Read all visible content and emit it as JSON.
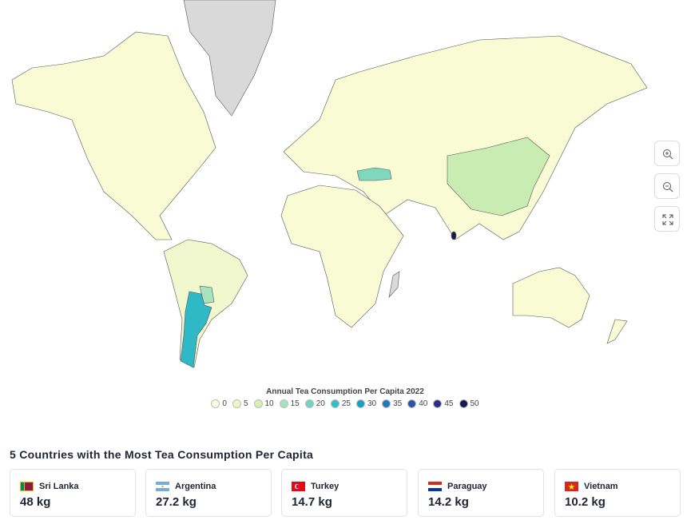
{
  "map": {
    "legend": {
      "title": "Annual Tea Consumption Per Capita 2022",
      "stops": [
        {
          "value": 0,
          "color": "#fcfde0"
        },
        {
          "value": 5,
          "color": "#eff7c2"
        },
        {
          "value": 10,
          "color": "#d3efb3"
        },
        {
          "value": 15,
          "color": "#a6e2bd"
        },
        {
          "value": 20,
          "color": "#72d3c0"
        },
        {
          "value": 25,
          "color": "#2fc0c8"
        },
        {
          "value": 30,
          "color": "#14a2c3"
        },
        {
          "value": 35,
          "color": "#1a7cb8"
        },
        {
          "value": 40,
          "color": "#2a54a6"
        },
        {
          "value": 45,
          "color": "#2b2e8a"
        },
        {
          "value": 50,
          "color": "#141b50"
        }
      ]
    }
  },
  "top": {
    "title": "5 Countries with the Most Tea Consumption Per Capita",
    "cards": [
      {
        "country": "Sri Lanka",
        "value": "48 kg"
      },
      {
        "country": "Argentina",
        "value": "27.2 kg"
      },
      {
        "country": "Turkey",
        "value": "14.7 kg"
      },
      {
        "country": "Paraguay",
        "value": "14.2 kg"
      },
      {
        "country": "Vietnam",
        "value": "10.2 kg"
      }
    ]
  }
}
